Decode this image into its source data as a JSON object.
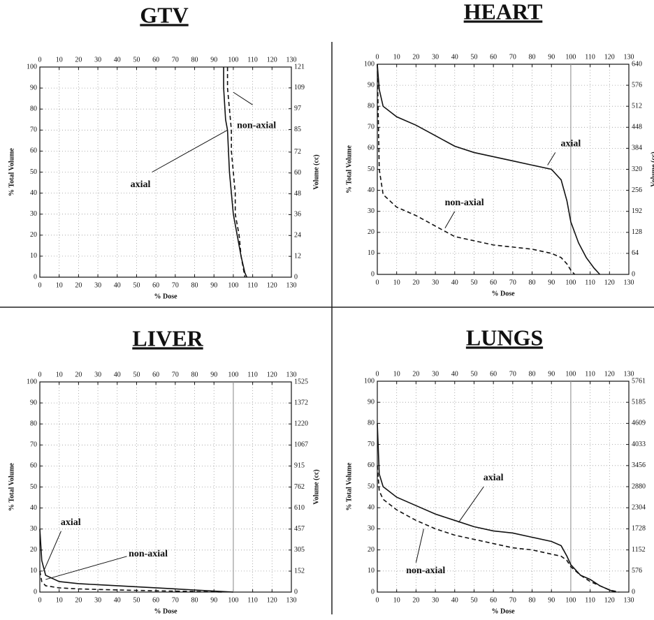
{
  "chart_data": [
    {
      "type": "line",
      "title": "GTV",
      "xlabel": "% Dose",
      "ylabel": "% Total Volume",
      "y2label": "Volume (cc)",
      "xlim": [
        0,
        130
      ],
      "xticks": [
        0,
        10,
        20,
        30,
        40,
        50,
        60,
        70,
        80,
        90,
        100,
        110,
        120,
        130
      ],
      "ylim": [
        0,
        100
      ],
      "yticks": [
        0,
        10,
        20,
        30,
        40,
        50,
        60,
        70,
        80,
        90,
        100
      ],
      "y2lim": [
        0,
        121
      ],
      "y2ticks": [
        0,
        12,
        24,
        36,
        48,
        60,
        72,
        85,
        97,
        109,
        121
      ],
      "grid": true,
      "series": [
        {
          "name": "axial",
          "color": "#111111",
          "dash": false,
          "x": [
            95,
            95,
            96,
            97,
            98,
            99,
            100,
            102,
            104,
            106,
            107
          ],
          "values": [
            100,
            90,
            75,
            70,
            50,
            40,
            30,
            20,
            10,
            2,
            0
          ]
        },
        {
          "name": "non-axial",
          "color": "#111111",
          "dash": true,
          "x": [
            97,
            97,
            98,
            99,
            99,
            100,
            101,
            101,
            103,
            104,
            106
          ],
          "values": [
            100,
            90,
            80,
            70,
            60,
            50,
            40,
            30,
            20,
            10,
            0
          ]
        }
      ],
      "annotations": [
        {
          "text": "axial"
        },
        {
          "text": "non-axial"
        }
      ]
    },
    {
      "type": "line",
      "title": "HEART",
      "xlabel": "% Dose",
      "ylabel": "% Total Volume",
      "y2label": "Volume (cc)",
      "xlim": [
        0,
        130
      ],
      "xticks": [
        0,
        10,
        20,
        30,
        40,
        50,
        60,
        70,
        80,
        90,
        100,
        110,
        120,
        130
      ],
      "ylim": [
        0,
        100
      ],
      "yticks": [
        0,
        10,
        20,
        30,
        40,
        50,
        60,
        70,
        80,
        90,
        100
      ],
      "y2lim": [
        0,
        640
      ],
      "y2ticks": [
        0,
        64,
        128,
        192,
        256,
        320,
        384,
        448,
        512,
        576,
        640
      ],
      "grid": true,
      "vline": 100,
      "series": [
        {
          "name": "axial",
          "color": "#111111",
          "dash": false,
          "x": [
            0,
            1,
            3,
            10,
            20,
            30,
            40,
            50,
            60,
            70,
            80,
            90,
            95,
            98,
            100,
            104,
            108,
            112,
            115
          ],
          "values": [
            100,
            88,
            80,
            75,
            71,
            66,
            61,
            58,
            56,
            54,
            52,
            50,
            45,
            35,
            25,
            15,
            8,
            3,
            0
          ]
        },
        {
          "name": "non-axial",
          "color": "#111111",
          "dash": true,
          "x": [
            0,
            1,
            3,
            10,
            20,
            30,
            40,
            50,
            60,
            70,
            80,
            90,
            95,
            98,
            100,
            102
          ],
          "values": [
            100,
            50,
            38,
            32,
            28,
            23,
            18,
            16,
            14,
            13,
            12,
            10,
            8,
            5,
            2,
            0
          ]
        }
      ],
      "annotations": [
        {
          "text": "axial"
        },
        {
          "text": "non-axial"
        }
      ]
    },
    {
      "type": "line",
      "title": "LIVER",
      "xlabel": "% Dose",
      "ylabel": "% Total Volume",
      "y2label": "Volume (cc)",
      "xlim": [
        0,
        130
      ],
      "xticks": [
        0,
        10,
        20,
        30,
        40,
        50,
        60,
        70,
        80,
        90,
        100,
        110,
        120,
        130
      ],
      "ylim": [
        0,
        100
      ],
      "yticks": [
        0,
        10,
        20,
        30,
        40,
        50,
        60,
        70,
        80,
        90,
        100
      ],
      "y2lim": [
        0,
        1525
      ],
      "y2ticks": [
        0,
        152,
        305,
        457,
        610,
        762,
        915,
        1067,
        1220,
        1372,
        1525
      ],
      "grid": true,
      "vline": 100,
      "series": [
        {
          "name": "axial",
          "color": "#111111",
          "dash": false,
          "x": [
            0,
            1,
            3,
            10,
            20,
            30,
            40,
            50,
            60,
            70,
            80,
            90,
            100
          ],
          "values": [
            30,
            15,
            8,
            5,
            4,
            3.5,
            3,
            2.5,
            2,
            1.5,
            1,
            0.5,
            0
          ]
        },
        {
          "name": "non-axial",
          "color": "#111111",
          "dash": true,
          "x": [
            0,
            1,
            3,
            10,
            20,
            40,
            60,
            80,
            95
          ],
          "values": [
            10,
            5,
            3,
            2,
            1.5,
            1,
            0.6,
            0.3,
            0
          ]
        }
      ],
      "annotations": [
        {
          "text": "axial"
        },
        {
          "text": "non-axial"
        }
      ]
    },
    {
      "type": "line",
      "title": "LUNGS",
      "xlabel": "% Dose",
      "ylabel": "% Total Volume",
      "xlim": [
        0,
        130
      ],
      "xticks": [
        0,
        10,
        20,
        30,
        40,
        50,
        60,
        70,
        80,
        90,
        100,
        110,
        120,
        130
      ],
      "ylim": [
        0,
        100
      ],
      "yticks": [
        0,
        10,
        20,
        30,
        40,
        50,
        60,
        70,
        80,
        90,
        100
      ],
      "y2lim": [
        0,
        5761
      ],
      "y2ticks": [
        0,
        576,
        1152,
        1728,
        2304,
        2880,
        3456,
        4033,
        4609,
        5185,
        5761
      ],
      "grid": true,
      "vline": 100,
      "series": [
        {
          "name": "axial",
          "color": "#111111",
          "dash": false,
          "x": [
            0,
            1,
            3,
            10,
            20,
            30,
            40,
            50,
            60,
            70,
            80,
            90,
            95,
            98,
            100,
            105,
            110,
            115,
            120,
            123
          ],
          "values": [
            80,
            56,
            50,
            45,
            41,
            37,
            34,
            31,
            29,
            28,
            26,
            24,
            22,
            17,
            13,
            8,
            6,
            3,
            1,
            0
          ]
        },
        {
          "name": "non-axial",
          "color": "#111111",
          "dash": true,
          "x": [
            0,
            1,
            3,
            10,
            20,
            30,
            40,
            50,
            60,
            70,
            80,
            90,
            95,
            98,
            100,
            105,
            110,
            115,
            120,
            125
          ],
          "values": [
            60,
            48,
            44,
            39,
            34,
            30,
            27,
            25,
            23,
            21,
            20,
            18,
            17,
            15,
            12,
            8,
            5,
            3,
            1,
            0
          ]
        }
      ],
      "annotations": [
        {
          "text": "axial"
        },
        {
          "text": "non-axial"
        }
      ]
    }
  ]
}
